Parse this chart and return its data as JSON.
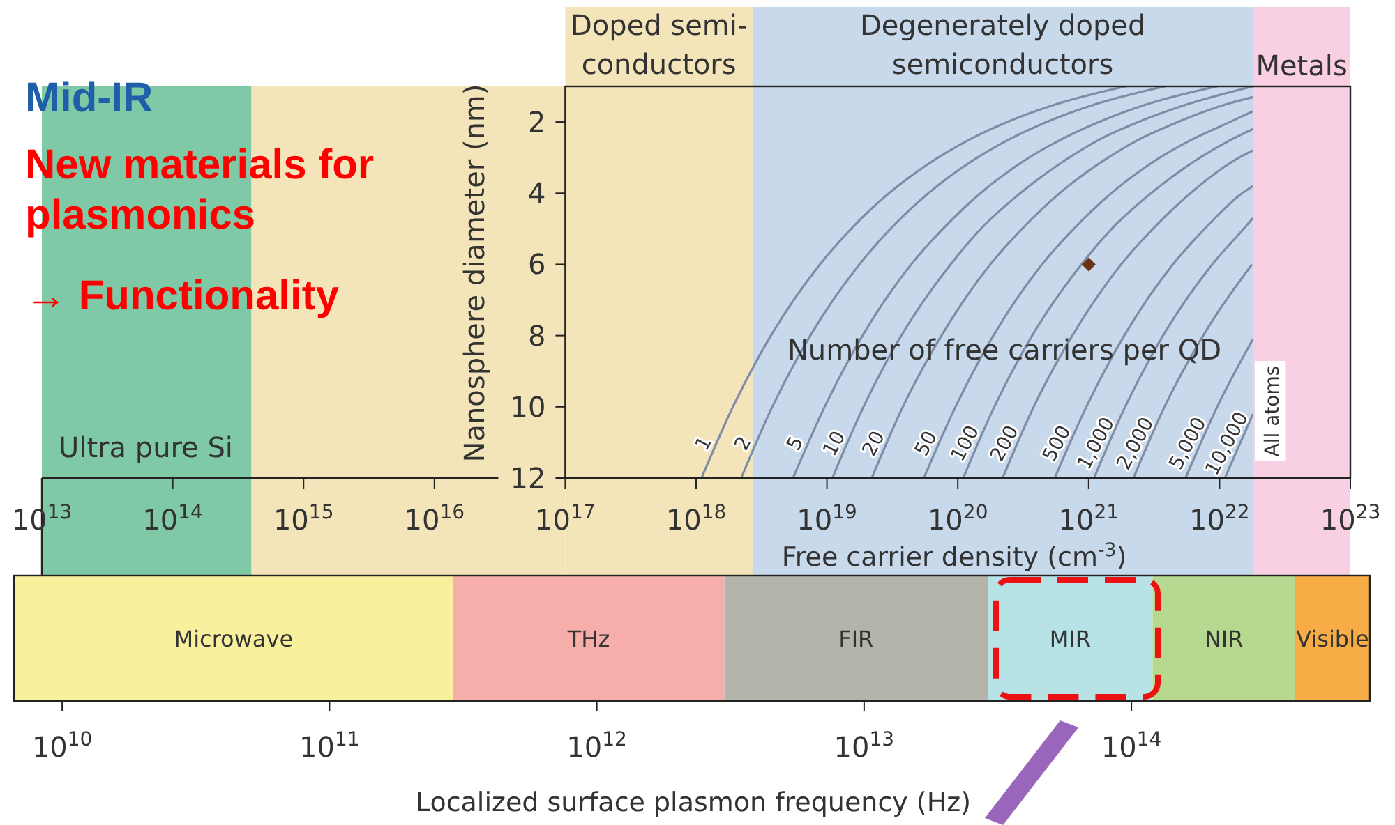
{
  "chart_data": [
    {
      "type": "line",
      "title": "Mid-IR",
      "xlabel": "Free carrier density (cm$^{-3}$)",
      "ylabel": "Nanosphere diameter (nm)",
      "log": "x",
      "xlim": [
        10000000000000.0,
        1e+23
      ],
      "ylim": [
        12,
        1
      ],
      "xticks": [
        {
          "value": 10000000000000.0,
          "label": "10$^{13}$"
        },
        {
          "value": 100000000000000.0,
          "label": "10$^{14}$"
        },
        {
          "value": 1000000000000000.0,
          "label": "10$^{15}$"
        },
        {
          "value": 1e+16,
          "label": "10$^{16}$"
        },
        {
          "value": 1e+17,
          "label": "10$^{17}$"
        },
        {
          "value": 1e+18,
          "label": "10$^{18}$"
        },
        {
          "value": 1e+19,
          "label": "10$^{19}$"
        },
        {
          "value": 1e+20,
          "label": "10$^{20}$"
        },
        {
          "value": 1e+21,
          "label": "10$^{21}$"
        },
        {
          "value": 1e+22,
          "label": "10$^{22}$"
        },
        {
          "value": 1e+23,
          "label": "10$^{23}$"
        }
      ],
      "yticks": [
        2,
        4,
        6,
        8,
        10,
        12
      ],
      "bands": [
        {
          "axis": "x",
          "from": 10000000000000.0,
          "to": 400000000000000.0,
          "label": "Ultra pure Si",
          "color": "#7fc9a6"
        },
        {
          "axis": "x",
          "from": 400000000000000.0,
          "to": 1e+17,
          "color": "#f3e5b9"
        },
        {
          "axis": "x",
          "from": 1e+17,
          "to": 2.7e+18,
          "label": "Doped semi-\nconductors",
          "color": "#f3e5b9"
        },
        {
          "axis": "x",
          "from": 2.7e+18,
          "to": 1.8e+22,
          "label": "Degenerately doped\nsemiconductors",
          "color": "#c9d9ec"
        },
        {
          "axis": "x",
          "from": 1.8e+22,
          "to": 1e+23,
          "label": "Metals",
          "color": "#f8cfe3"
        }
      ],
      "annotations": [
        "New materials for plasmonics",
        "→ Functionality",
        "Number of free carriers per QD",
        "All atoms"
      ],
      "series": [
        {
          "name": "1",
          "color": "#7f8ca6",
          "x": [
            1.1e+18,
            1.91e+18,
            3.73e+18,
            8.84e+18,
            1.53e+19,
            2.98e+19,
            7.07e+19,
            1.22e+20,
            2.39e+20,
            5.66e+20,
            1.91e+21
          ],
          "values": [
            12,
            10,
            8,
            6,
            5,
            4,
            3,
            2.5,
            2,
            1.5,
            1
          ]
        },
        {
          "name": "2",
          "color": "#7f8ca6",
          "x": [
            2.21e+18,
            3.82e+18,
            7.46e+18,
            1.77e+19,
            3.06e+19,
            5.96e+19,
            1.41e+20,
            2.44e+20,
            4.78e+20,
            1.13e+21,
            3.82e+21
          ],
          "values": [
            12,
            10,
            8,
            6,
            5,
            4,
            3,
            2.5,
            2,
            1.5,
            1
          ]
        },
        {
          "name": "5",
          "color": "#7f8ca6",
          "x": [
            5.5e+18,
            9.6e+18,
            1.87e+19,
            4.4e+19,
            7.7e+19,
            1.49e+20,
            3.5e+20,
            6.1e+20,
            1.2e+21,
            2.8e+21,
            9.6e+21
          ],
          "values": [
            12,
            10,
            8,
            6,
            5,
            4,
            3,
            2.5,
            2,
            1.5,
            1
          ]
        },
        {
          "name": "10",
          "color": "#7f8ca6",
          "x": [
            1.1e+19,
            1.9e+19,
            3.7e+19,
            8.8e+19,
            1.5e+20,
            3e+20,
            7.1e+20,
            1.2e+21,
            2.4e+21,
            5.7e+21,
            1.8e+22
          ],
          "values": [
            12,
            10,
            8,
            6,
            5,
            4,
            3,
            2.5,
            2,
            1.5,
            1
          ]
        },
        {
          "name": "20",
          "color": "#7f8ca6",
          "x": [
            2.2e+19,
            3.8e+19,
            7.5e+19,
            1.77e+20,
            3.1e+20,
            6e+20,
            1.41e+21,
            2.4e+21,
            4.8e+21,
            1.13e+22,
            1.8e+22
          ],
          "values": [
            12,
            10,
            8,
            6,
            5,
            4,
            3,
            2.5,
            2,
            1.5,
            1.3
          ]
        },
        {
          "name": "50",
          "color": "#7f8ca6",
          "x": [
            5.5e+19,
            9.6e+19,
            1.87e+20,
            4.4e+20,
            7.7e+20,
            1.49e+21,
            3.5e+21,
            6.1e+21,
            1.2e+22,
            1.8e+22
          ],
          "values": [
            12,
            10,
            8,
            6,
            5,
            4,
            3,
            2.5,
            2,
            1.7
          ]
        },
        {
          "name": "100",
          "color": "#7f8ca6",
          "x": [
            1.1e+20,
            1.9e+20,
            3.7e+20,
            8.8e+20,
            1.5e+21,
            3e+21,
            7.1e+21,
            1.22e+22,
            1.8e+22
          ],
          "values": [
            12,
            10,
            8,
            6,
            5,
            4,
            3,
            2.5,
            2.2
          ]
        },
        {
          "name": "200",
          "color": "#7f8ca6",
          "x": [
            2.2e+20,
            3.8e+20,
            7.5e+20,
            1.77e+21,
            3.1e+21,
            6e+21,
            1.41e+22,
            1.8e+22
          ],
          "values": [
            12,
            10,
            8,
            6,
            5,
            4,
            3,
            2.8
          ]
        },
        {
          "name": "500",
          "color": "#7f8ca6",
          "x": [
            5.5e+20,
            9.6e+20,
            1.87e+21,
            4.4e+21,
            7.7e+21,
            1.49e+22,
            1.8e+22
          ],
          "values": [
            12,
            10,
            8,
            6,
            5,
            4,
            3.8
          ]
        },
        {
          "name": "1,000",
          "color": "#7f8ca6",
          "x": [
            1.1e+21,
            1.9e+21,
            3.7e+21,
            8.8e+21,
            1.53e+22,
            1.8e+22
          ],
          "values": [
            12,
            10,
            8,
            6,
            5,
            4.7
          ]
        },
        {
          "name": "2,000",
          "color": "#7f8ca6",
          "x": [
            2.2e+21,
            3.8e+21,
            7.5e+21,
            1.77e+22
          ],
          "values": [
            12,
            10,
            8,
            6
          ]
        },
        {
          "name": "5,000",
          "color": "#7f8ca6",
          "x": [
            5.5e+21,
            9.6e+21,
            1.8e+22
          ],
          "values": [
            12,
            10,
            8.1
          ]
        },
        {
          "name": "10,000",
          "color": "#7f8ca6",
          "x": [
            1.1e+22,
            1.8e+22
          ],
          "values": [
            12,
            10.2
          ]
        },
        {
          "type": "scatter",
          "color": "#6b3214",
          "marker": "diamond",
          "x": [
            1e+21
          ],
          "values": [
            6
          ]
        }
      ]
    },
    {
      "type": "bar",
      "orientation": "horizontal",
      "categories": [
        null
      ],
      "xlabel": "Localized surface plasmon frequency (Hz)",
      "log": "x",
      "xlim": [
        6600000000.0,
        780000000000000.0
      ],
      "series": [
        {
          "name": "Microwave",
          "color": "#f8f09c",
          "base": [
            6600000000.0
          ],
          "values": [
            283400000000.0
          ]
        },
        {
          "name": "THz",
          "color": "#f5aeaa",
          "base": [
            290000000000.0
          ],
          "values": [
            2710000000000.0
          ]
        },
        {
          "name": "FIR",
          "color": "#b4b4aa",
          "base": [
            3000000000000.0
          ],
          "values": [
            26000000000000.0
          ]
        },
        {
          "name": "MIR",
          "color": "#b7e2e6",
          "base": [
            29000000000000.0
          ],
          "values": [
            91000000000000.0
          ]
        },
        {
          "name": "NIR",
          "color": "#b7d98f",
          "base": [
            120000000000000.0
          ],
          "values": [
            290000000000000.0
          ]
        },
        {
          "name": "Visible",
          "color": "#f8ac45",
          "base": [
            410000000000000.0
          ],
          "values": [
            370000000000000.0
          ]
        }
      ],
      "xticks": [
        {
          "value": 10000000000.0,
          "label": "10$^{10}$"
        },
        {
          "value": 100000000000.0,
          "label": "10$^{11}$"
        },
        {
          "value": 1000000000000.0,
          "label": "10$^{12}$"
        },
        {
          "value": 10000000000000.0,
          "label": "10$^{13}$"
        },
        {
          "value": 100000000000000.0,
          "label": "10$^{14}$"
        }
      ]
    }
  ]
}
